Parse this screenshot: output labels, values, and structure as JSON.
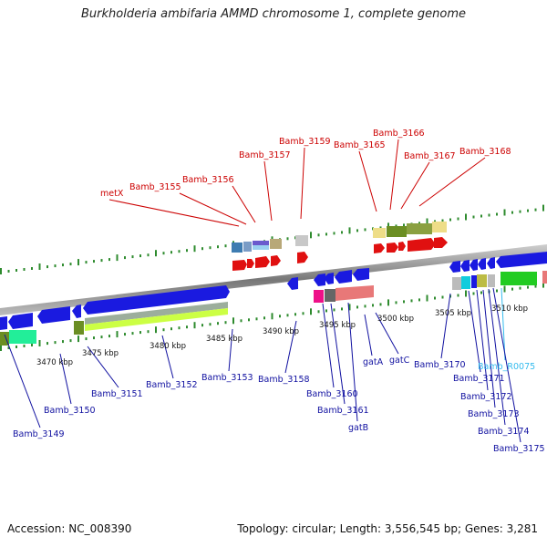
{
  "title": "Burkholderia ambifaria AMMD chromosome 1, complete genome",
  "footer": {
    "accession": "Accession: NC_008390",
    "topology": "Topology: circular; Length: 3,556,545 bp; Genes: 3,281"
  },
  "kbp_labels": [
    "3470 kbp",
    "3475 kbp",
    "3480 kbp",
    "3485 kbp",
    "3490 kbp",
    "3495 kbp",
    "3500 kbp",
    "3505 kbp",
    "3510 kbp"
  ],
  "top_labels": [
    "metX",
    "Bamb_3155",
    "Bamb_3156",
    "Bamb_3157",
    "Bamb_3159",
    "Bamb_3165",
    "Bamb_3166",
    "Bamb_3167",
    "Bamb_3168"
  ],
  "bottom_labels": [
    "Bamb_3149",
    "Bamb_3150",
    "Bamb_3151",
    "Bamb_3152",
    "Bamb_3153",
    "Bamb_3158",
    "Bamb_3160",
    "Bamb_3161",
    "gatB",
    "gatA",
    "gatC",
    "Bamb_3170",
    "Bamb_3171",
    "Bamb_R0075",
    "Bamb_3172",
    "Bamb_3173",
    "Bamb_3174",
    "Bamb_3175"
  ],
  "colors": {
    "forward_gene": "#e01010",
    "reverse_gene": "#1a1ae0",
    "label_top": "#cc0000",
    "label_bottom": "#1010a0",
    "label_rna": "#33bbee",
    "backbone": "#8a8a8a",
    "tick": "#2e8b2e"
  }
}
